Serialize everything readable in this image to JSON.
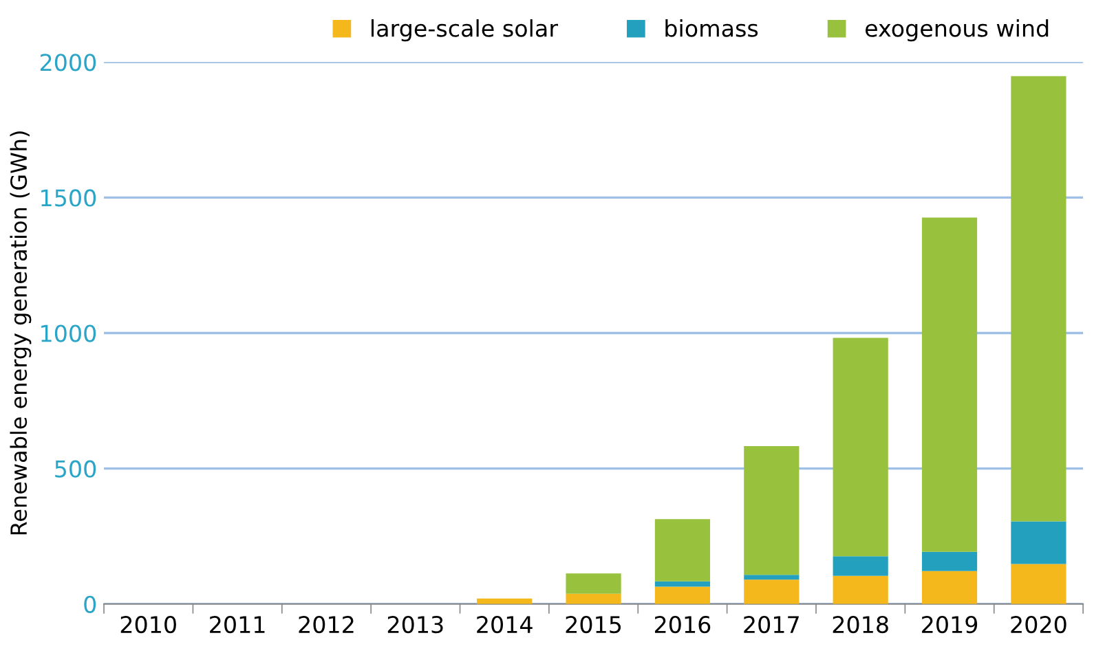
{
  "chart_data": {
    "type": "bar",
    "stacked": true,
    "ylabel": "Renewable energy generation (GWh)",
    "categories": [
      "2010",
      "2011",
      "2012",
      "2013",
      "2014",
      "2015",
      "2016",
      "2017",
      "2018",
      "2019",
      "2020"
    ],
    "series": [
      {
        "name": "large-scale solar",
        "color": "#f5b81c",
        "values": [
          0,
          0,
          0,
          0,
          20,
          38,
          64,
          90,
          104,
          122,
          148
        ]
      },
      {
        "name": "biomass",
        "color": "#24a0bf",
        "values": [
          0,
          0,
          0,
          0,
          0,
          0,
          20,
          18,
          72,
          71,
          157
        ]
      },
      {
        "name": "exogenous wind",
        "color": "#98c23e",
        "values": [
          0,
          0,
          0,
          0,
          0,
          75,
          229,
          475,
          806,
          1233,
          1643
        ]
      }
    ],
    "ylim": [
      0,
      2000
    ],
    "yticks": [
      0,
      500,
      1000,
      1500,
      2000
    ],
    "grid": "y",
    "legend": "top"
  }
}
